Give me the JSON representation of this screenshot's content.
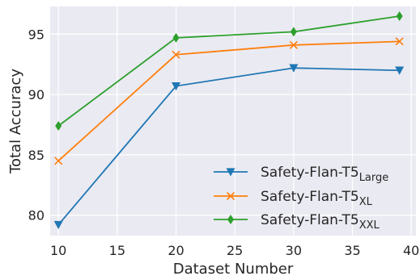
{
  "chart_data": {
    "type": "line",
    "xlabel": "Dataset Number",
    "ylabel": "Total Accuracy",
    "xlim": [
      9.3,
      40.4
    ],
    "ylim": [
      78.3,
      97.3
    ],
    "xticks": [
      10,
      15,
      20,
      25,
      30,
      35,
      40
    ],
    "yticks": [
      80,
      85,
      90,
      95
    ],
    "grid": true,
    "legend_position": "lower-right",
    "x": [
      10,
      20,
      30,
      39
    ],
    "series": [
      {
        "name": "Safety-Flan-T5",
        "name_base": "Safety-Flan-T5",
        "name_sub": "Large",
        "values": [
          79.2,
          90.7,
          92.2,
          92.0
        ],
        "color": "#1f77b4",
        "marker": "triangle-down"
      },
      {
        "name": "Safety-Flan-T5",
        "name_base": "Safety-Flan-T5",
        "name_sub": "XL",
        "values": [
          84.5,
          93.3,
          94.1,
          94.4
        ],
        "color": "#ff7f0e",
        "marker": "x"
      },
      {
        "name": "Safety-Flan-T5",
        "name_base": "Safety-Flan-T5",
        "name_sub": "XXL",
        "values": [
          87.4,
          94.7,
          95.2,
          96.5
        ],
        "color": "#2ca02c",
        "marker": "thin-diamond"
      }
    ]
  }
}
